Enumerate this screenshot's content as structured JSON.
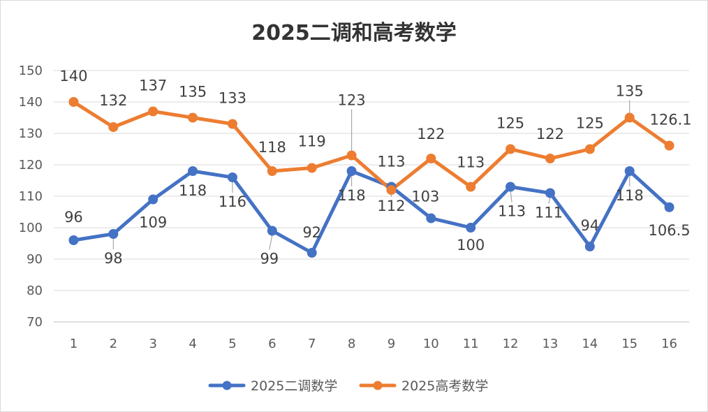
{
  "chart_data": {
    "type": "line",
    "title": "2025二调和高考数学",
    "categories": [
      "1",
      "2",
      "3",
      "4",
      "5",
      "6",
      "7",
      "8",
      "9",
      "10",
      "11",
      "12",
      "13",
      "14",
      "15",
      "16"
    ],
    "ylim": [
      70,
      150
    ],
    "yticks": [
      70,
      80,
      90,
      100,
      110,
      120,
      130,
      140,
      150
    ],
    "grid": true,
    "legend_position": "bottom",
    "series": [
      {
        "name": "2025二调数学",
        "color": "#4472c4",
        "values": [
          96,
          98,
          109,
          118,
          116,
          99,
          92,
          118,
          113,
          103,
          100,
          113,
          111,
          94,
          118,
          106.5
        ],
        "labels": [
          "96",
          "98",
          "109",
          "118",
          "116",
          "99",
          "92",
          "118",
          "113",
          "103",
          "100",
          "113",
          "111",
          "94",
          "118",
          "106.5"
        ]
      },
      {
        "name": "2025高考数学",
        "color": "#ed7d31",
        "values": [
          140,
          132,
          137,
          135,
          133,
          118,
          119,
          123,
          112,
          122,
          113,
          125,
          122,
          125,
          135,
          126.1
        ],
        "labels": [
          "140",
          "132",
          "137",
          "135",
          "133",
          "118",
          "119",
          "123",
          "112",
          "122",
          "113",
          "125",
          "122",
          "125",
          "135",
          "126.1"
        ]
      }
    ]
  }
}
